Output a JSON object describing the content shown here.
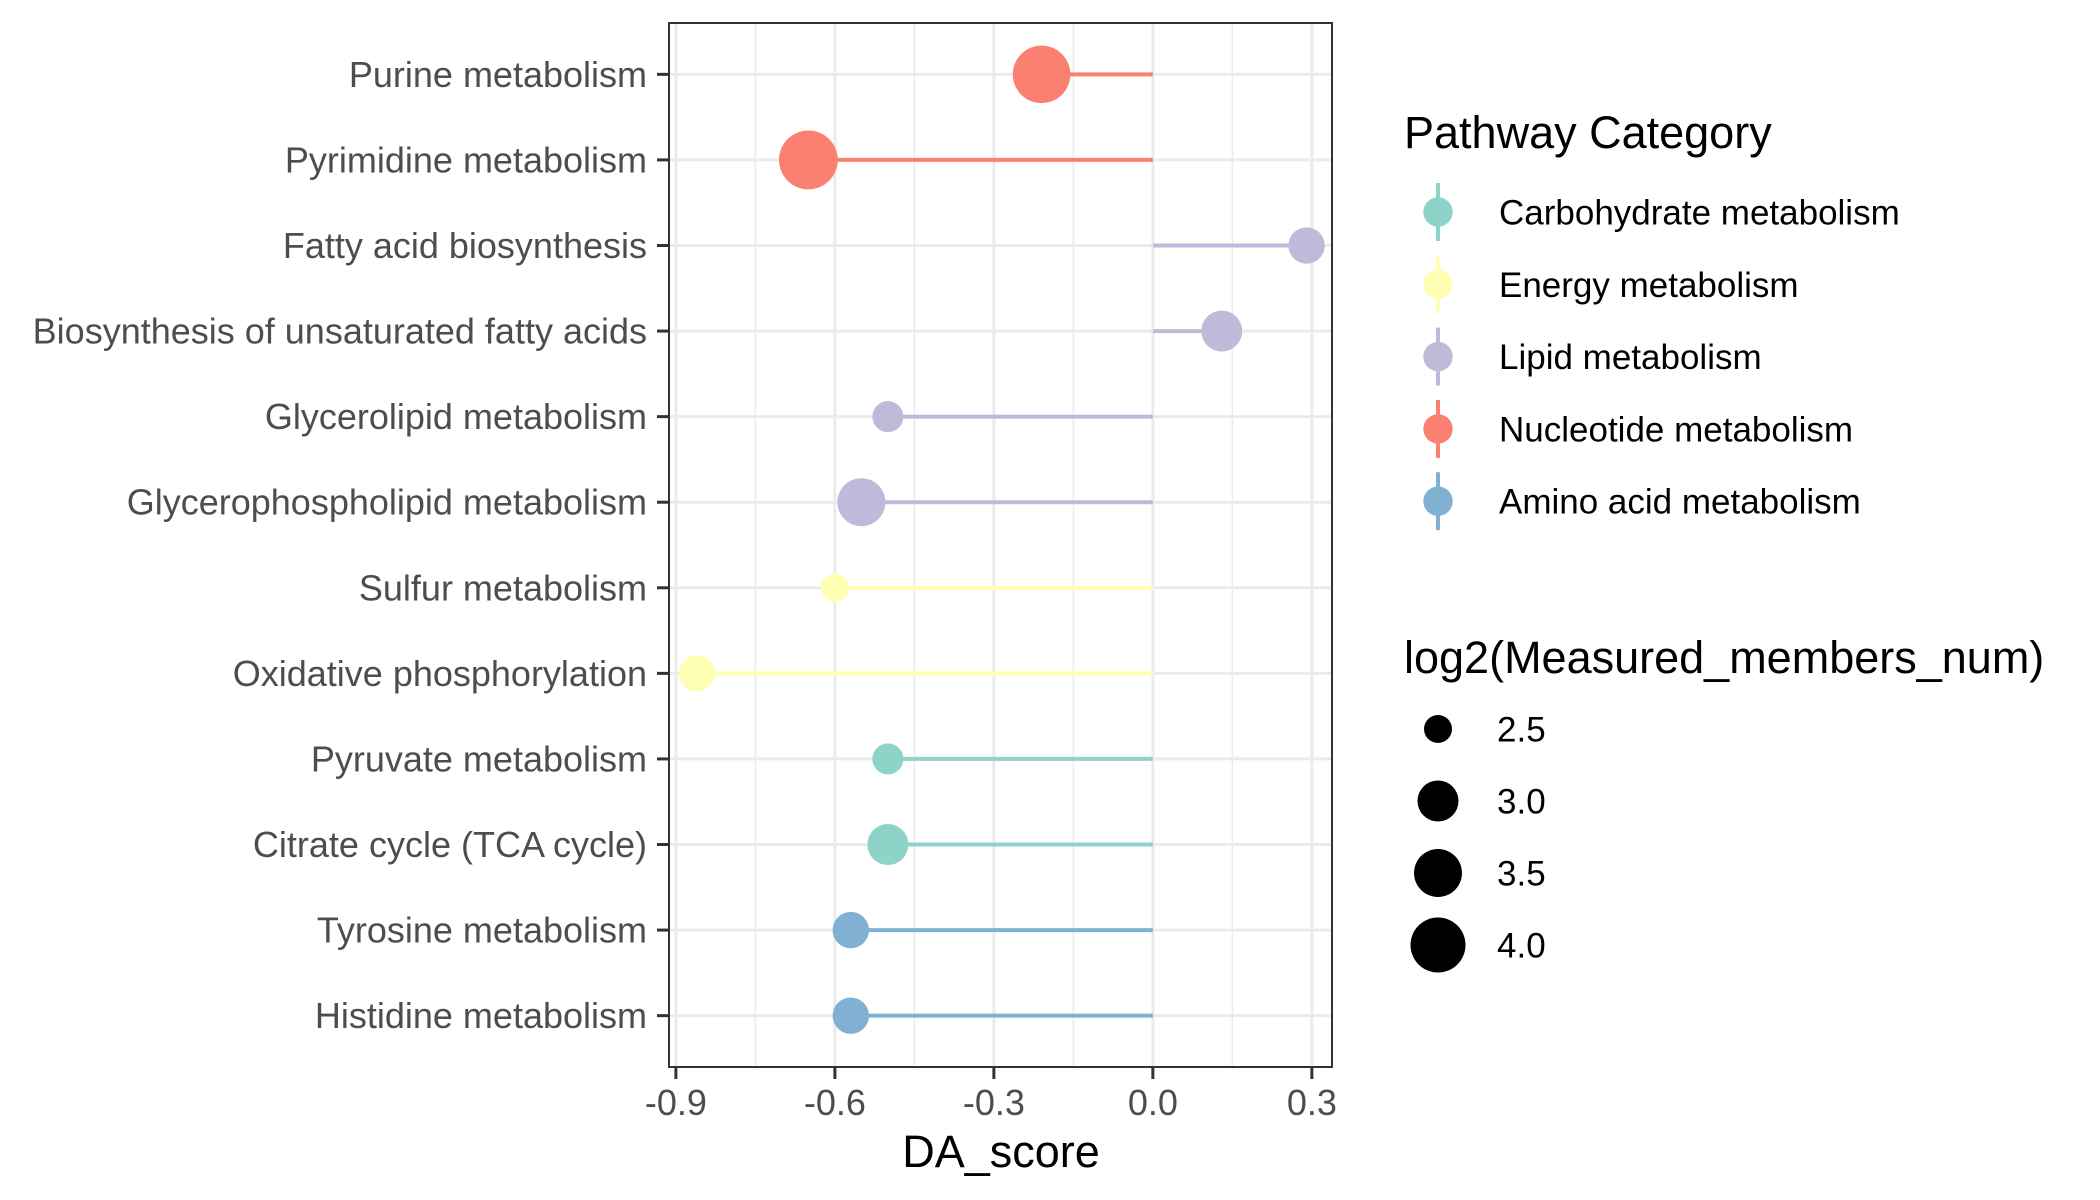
{
  "chart_data": {
    "type": "lollipop",
    "title": "",
    "xlabel": "DA_score",
    "ylabel": "",
    "xlim": [
      -0.913,
      0.338
    ],
    "x_ticks": [
      -0.9,
      -0.6,
      -0.3,
      0.0,
      0.3
    ],
    "x_tick_labels": [
      "-0.9",
      "-0.6",
      "-0.3",
      "0.0",
      "0.3"
    ],
    "x_minor_ticks": [
      -0.75,
      -0.45,
      -0.15,
      0.15
    ],
    "grid": true,
    "baseline": 0.0,
    "categories": [
      "Purine metabolism",
      "Pyrimidine metabolism",
      "Fatty acid biosynthesis",
      "Biosynthesis of unsaturated fatty acids",
      "Glycerolipid metabolism",
      "Glycerophospholipid metabolism",
      "Sulfur metabolism",
      "Oxidative phosphorylation",
      "Pyruvate metabolism",
      "Citrate cycle (TCA cycle)",
      "Tyrosine metabolism",
      "Histidine metabolism"
    ],
    "values": [
      -0.21,
      -0.65,
      0.29,
      0.13,
      -0.5,
      -0.55,
      -0.6,
      -0.86,
      -0.5,
      -0.5,
      -0.57,
      -0.57
    ],
    "sizes": [
      4.2,
      4.3,
      2.8,
      3.0,
      2.6,
      3.5,
      2.5,
      2.8,
      2.6,
      3.0,
      2.8,
      2.8
    ],
    "groups": [
      "Nucleotide metabolism",
      "Nucleotide metabolism",
      "Lipid metabolism",
      "Lipid metabolism",
      "Lipid metabolism",
      "Lipid metabolism",
      "Energy metabolism",
      "Energy metabolism",
      "Carbohydrate metabolism",
      "Carbohydrate metabolism",
      "Amino acid metabolism",
      "Amino acid metabolism"
    ],
    "color_legend": {
      "title": "Pathway Category",
      "position": "right",
      "entries": [
        {
          "label": "Carbohydrate metabolism",
          "color": "#8DD3C7"
        },
        {
          "label": "Energy metabolism",
          "color": "#FFFFB3"
        },
        {
          "label": "Lipid metabolism",
          "color": "#BEBADA"
        },
        {
          "label": "Nucleotide metabolism",
          "color": "#FB8072"
        },
        {
          "label": "Amino acid metabolism",
          "color": "#80B1D3"
        }
      ]
    },
    "size_legend": {
      "title": "log2(Measured_members_num)",
      "position": "right",
      "breaks": [
        2.5,
        3.0,
        3.5,
        4.0
      ],
      "labels": [
        "2.5",
        "3.0",
        "3.5",
        "4.0"
      ]
    }
  }
}
